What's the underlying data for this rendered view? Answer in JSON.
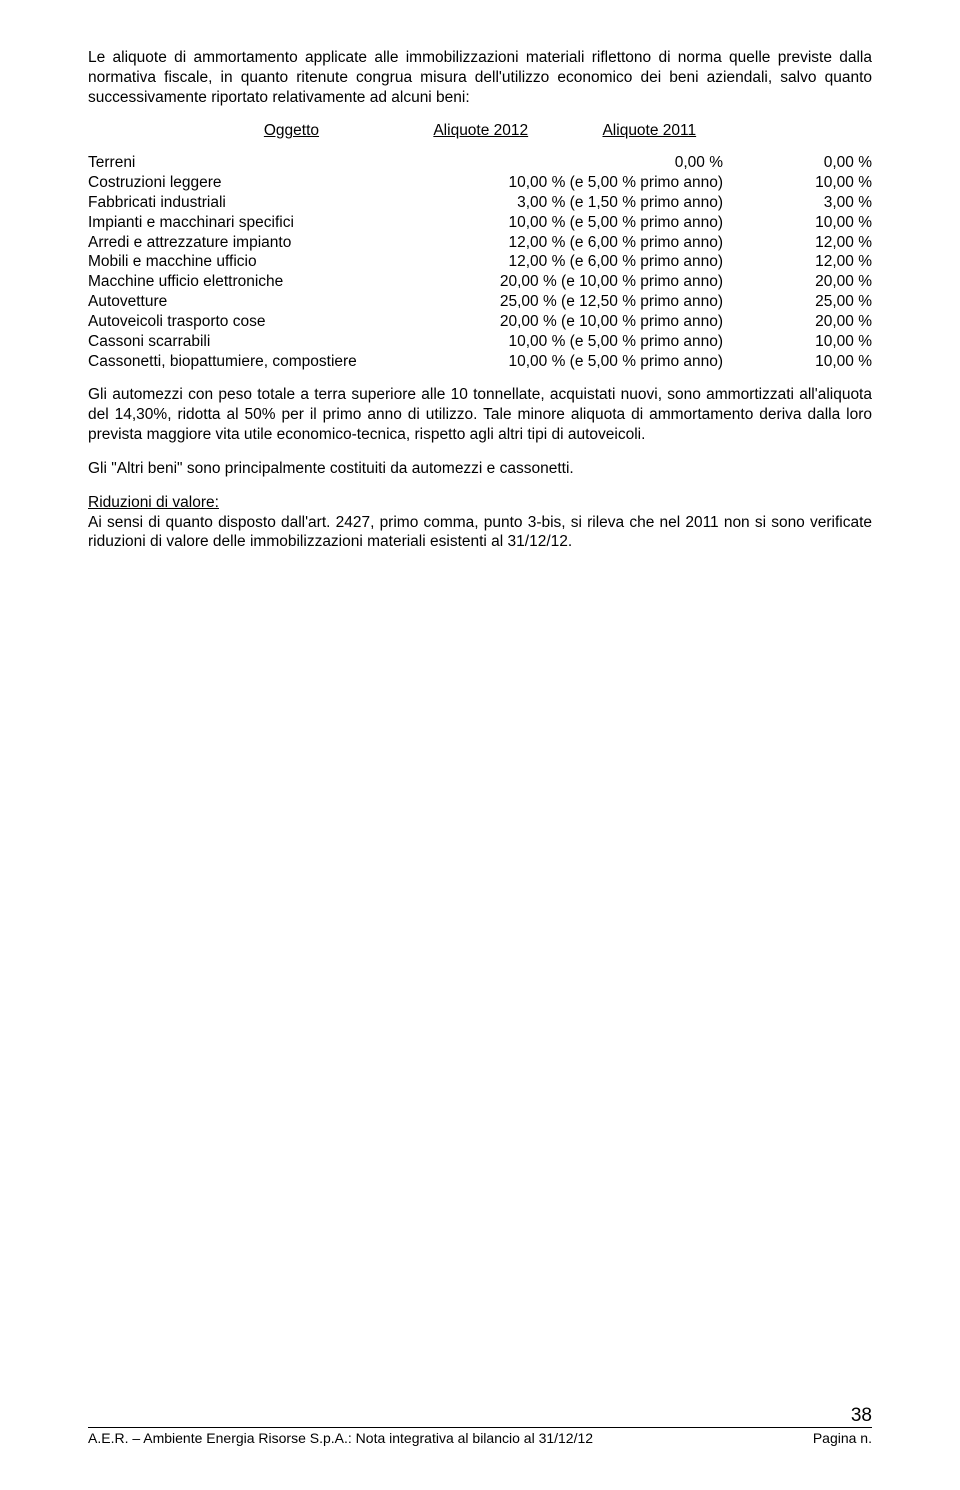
{
  "para1": "Le aliquote di ammortamento applicate alle immobilizzazioni materiali riflettono di norma quelle previste dalla normativa fiscale, in quanto ritenute congrua misura dell'utilizzo economico dei beni aziendali, salvo quanto successivamente riportato relativamente ad alcuni beni:",
  "table_heading": {
    "col1": "Oggetto",
    "col2": "Aliquote 2012",
    "col3": "Aliquote 2011"
  },
  "rows": [
    {
      "label": "Terreni",
      "v2012": "0,00 %",
      "v2011": "0,00 %"
    },
    {
      "label": "Costruzioni leggere",
      "v2012": "10,00 % (e   5,00 % primo anno)",
      "v2011": "10,00 %"
    },
    {
      "label": "Fabbricati industriali",
      "v2012": "3,00 % (e   1,50 % primo anno)",
      "v2011": "3,00 %"
    },
    {
      "label": "Impianti e macchinari specifici",
      "v2012": "10,00 % (e   5,00 % primo anno)",
      "v2011": "10,00 %"
    },
    {
      "label": "Arredi e attrezzature impianto",
      "v2012": "12,00 % (e   6,00 % primo anno)",
      "v2011": "12,00 %"
    },
    {
      "label": "Mobili e macchine ufficio",
      "v2012": "12,00 % (e   6,00 % primo anno)",
      "v2011": "12,00 %"
    },
    {
      "label": "Macchine ufficio elettroniche",
      "v2012": "20,00 % (e 10,00 % primo anno)",
      "v2011": "20,00 %"
    },
    {
      "label": "Autovetture",
      "v2012": "25,00 % (e 12,50 % primo anno)",
      "v2011": "25,00 %"
    },
    {
      "label": "Autoveicoli trasporto cose",
      "v2012": "20,00 % (e 10,00 % primo anno)",
      "v2011": "20,00 %"
    },
    {
      "label": "Cassoni scarrabili",
      "v2012": "10,00 % (e   5,00 % primo anno)",
      "v2011": "10,00 %"
    },
    {
      "label": "Cassonetti, biopattumiere, compostiere",
      "v2012": "10,00 % (e   5,00 % primo anno)",
      "v2011": "10,00 %"
    }
  ],
  "para2": "Gli automezzi con peso totale a terra superiore alle 10 tonnellate, acquistati nuovi, sono ammortizzati all'aliquota del 14,30%, ridotta al 50% per il primo anno di utilizzo. Tale minore aliquota di ammortamento deriva dalla loro prevista maggiore vita utile economico-tecnica, rispetto agli altri tipi di autoveicoli.",
  "para3": "Gli \"Altri beni\" sono principalmente costituiti da automezzi e cassonetti.",
  "riduzioni_title": "Riduzioni di valore:",
  "para4": "Ai sensi di quanto disposto dall'art. 2427, primo comma, punto 3-bis, si rileva che nel 2011 non si sono verificate riduzioni di valore delle immobilizzazioni materiali esistenti al 31/12/12.",
  "footer_left": "A.E.R. – Ambiente Energia Risorse S.p.A.: Nota integrativa al bilancio al 31/12/12",
  "footer_right": "Pagina n.",
  "page_number": "38"
}
